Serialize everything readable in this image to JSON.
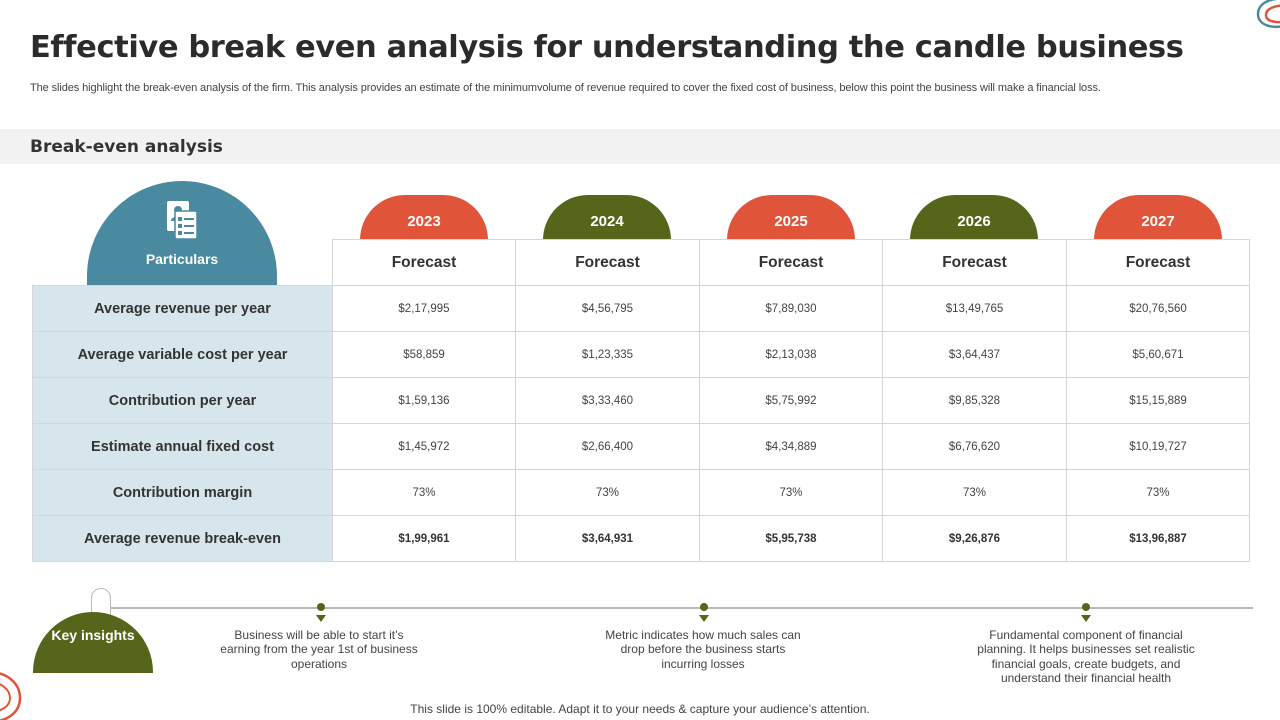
{
  "title": "Effective break even analysis for understanding the candle business",
  "subtitle": "The slides highlight the break-even analysis of the firm. This analysis provides an estimate of the minimumvolume of revenue required to cover the fixed cost of business, below this point the business will make a financial loss.",
  "section_title": "Break-even analysis",
  "table": {
    "particulars_label": "Particulars",
    "particulars_icon": "document-person-icon",
    "years": [
      {
        "year": "2023",
        "color": "#e0553a"
      },
      {
        "year": "2024",
        "color": "#55661b"
      },
      {
        "year": "2025",
        "color": "#e0553a"
      },
      {
        "year": "2026",
        "color": "#55661b"
      },
      {
        "year": "2027",
        "color": "#e0553a"
      }
    ],
    "column_header": "Forecast",
    "rows": [
      {
        "label": "Average revenue per year",
        "values": [
          "$2,17,995",
          "$4,56,795",
          "$7,89,030",
          "$13,49,765",
          "$20,76,560"
        ]
      },
      {
        "label": "Average variable cost per year",
        "values": [
          "$58,859",
          "$1,23,335",
          "$2,13,038",
          "$3,64,437",
          "$5,60,671"
        ]
      },
      {
        "label": "Contribution per year",
        "values": [
          "$1,59,136",
          "$3,33,460",
          "$5,75,992",
          "$9,85,328",
          "$15,15,889"
        ]
      },
      {
        "label": "Estimate annual fixed cost",
        "values": [
          "$1,45,972",
          "$2,66,400",
          "$4,34,889",
          "$6,76,620",
          "$10,19,727"
        ]
      },
      {
        "label": "Contribution margin",
        "values": [
          "73%",
          "73%",
          "73%",
          "73%",
          "73%"
        ]
      },
      {
        "label": "Average revenue break-even",
        "values": [
          "$1,99,961",
          "$3,64,931",
          "$5,95,738",
          "$9,26,876",
          "$13,96,887"
        ],
        "bold": true
      }
    ]
  },
  "key_insights": {
    "label": "Key insights",
    "items": [
      "Business will be able to start it’s earning from the year 1st of business operations",
      "Metric indicates how much sales can drop before the business starts incurring losses",
      "Fundamental component of financial planning. It helps businesses set realistic financial goals, create budgets, and understand their financial health"
    ]
  },
  "footer": "This slide is 100% editable. Adapt it to your needs & capture your audience’s attention.",
  "colors": {
    "accent_red": "#e0553a",
    "accent_green": "#55661b",
    "accent_teal": "#4a8aa0",
    "label_bg": "#d7e6ec"
  }
}
